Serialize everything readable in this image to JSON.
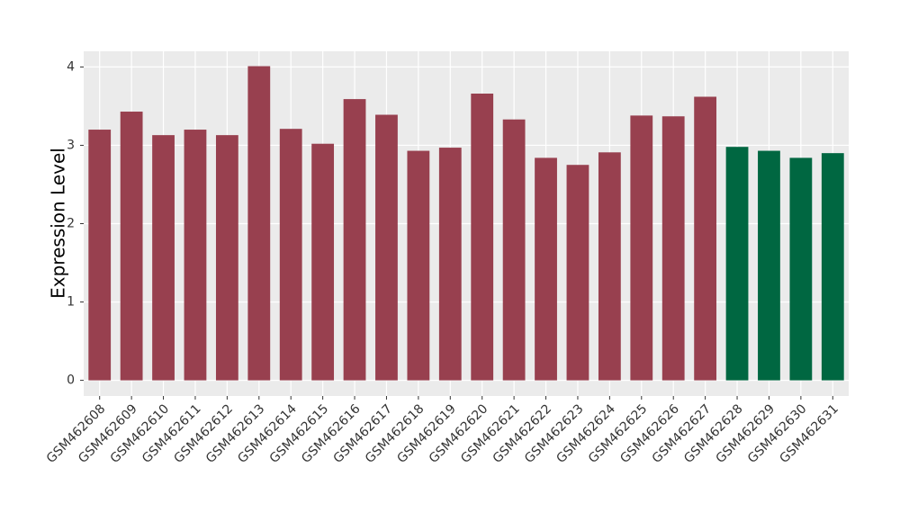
{
  "chart_data": {
    "type": "bar",
    "y_label": "Expression Level",
    "categories": [
      "GSM462608",
      "GSM462609",
      "GSM462610",
      "GSM462611",
      "GSM462612",
      "GSM462613",
      "GSM462614",
      "GSM462615",
      "GSM462616",
      "GSM462617",
      "GSM462618",
      "GSM462619",
      "GSM462620",
      "GSM462621",
      "GSM462622",
      "GSM462623",
      "GSM462624",
      "GSM462625",
      "GSM462626",
      "GSM462627",
      "GSM462628",
      "GSM462629",
      "GSM462630",
      "GSM462631"
    ],
    "values": [
      3.2,
      3.43,
      3.13,
      3.2,
      3.13,
      4.01,
      3.21,
      3.02,
      3.59,
      3.39,
      2.93,
      2.97,
      3.66,
      3.33,
      2.84,
      2.75,
      2.91,
      3.38,
      3.37,
      3.62,
      2.98,
      2.93,
      2.84,
      2.9
    ],
    "colors": [
      "#98404f",
      "#98404f",
      "#98404f",
      "#98404f",
      "#98404f",
      "#98404f",
      "#98404f",
      "#98404f",
      "#98404f",
      "#98404f",
      "#98404f",
      "#98404f",
      "#98404f",
      "#98404f",
      "#98404f",
      "#98404f",
      "#98404f",
      "#98404f",
      "#98404f",
      "#98404f",
      "#006741",
      "#006741",
      "#006741",
      "#006741"
    ],
    "ylim": [
      -0.2,
      4.2
    ],
    "yticks": [
      0,
      1,
      2,
      3,
      4
    ],
    "grid": true
  }
}
